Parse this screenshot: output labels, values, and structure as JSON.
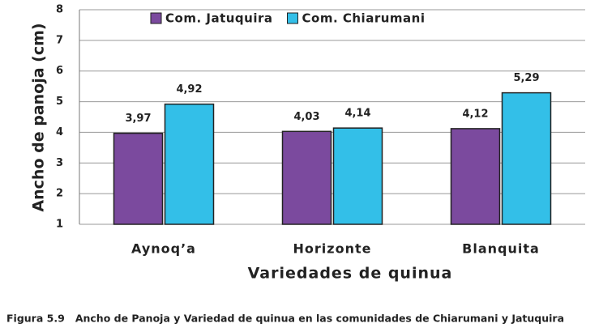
{
  "chart_data": {
    "type": "bar",
    "y_label": "Ancho de panoja (cm)",
    "x_label": "Variedades de quinua",
    "categories": [
      "Aynoq’a",
      "Horizonte",
      "Blanquita"
    ],
    "series": [
      {
        "name": "Com. Jatuquira",
        "color": "#7b4a9e",
        "values": [
          3.97,
          4.03,
          4.12
        ],
        "value_labels": [
          "3,97",
          "4,03",
          "4,12"
        ]
      },
      {
        "name": "Com. Chiarumani",
        "color": "#33bfe8",
        "values": [
          4.92,
          4.14,
          5.29
        ],
        "value_labels": [
          "4,92",
          "4,14",
          "5,29"
        ]
      }
    ],
    "ylim": [
      1,
      8
    ],
    "yticks": [
      1,
      2,
      3,
      4,
      5,
      6,
      7,
      8
    ],
    "grid": true,
    "legend": "top"
  },
  "caption": "Figura 5.9   Ancho de Panoja y Variedad de quinua en las comunidades de Chiarumani y Jatuquira"
}
